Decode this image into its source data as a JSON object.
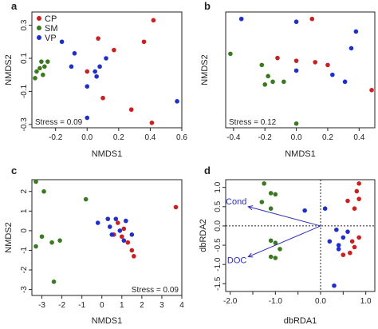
{
  "colors": {
    "CP": "#cc1f1f",
    "SM": "#3a7a1e",
    "VP": "#1f2fcc",
    "arrow": "#2d2db5"
  },
  "chart_data": [
    {
      "type": "scatter",
      "panel_label": "a",
      "xlabel": "NMDS1",
      "ylabel": "NMDS2",
      "xlim": [
        -0.35,
        0.6
      ],
      "ylim": [
        -0.32,
        0.38
      ],
      "xticks": [
        -0.2,
        0,
        0.2,
        0.4,
        0.6
      ],
      "xtick_labels": [
        "-0.2",
        "0.0",
        "0.2",
        "0.4",
        "0.6"
      ],
      "yticks": [
        -0.3,
        -0.1,
        0.1,
        0.3
      ],
      "ytick_labels": [
        "-0.3",
        "-0.1",
        "0.1",
        "0.3"
      ],
      "legend": {
        "position": "top-left",
        "entries": [
          "CP",
          "SM",
          "VP"
        ]
      },
      "annotation": "Stress = 0.09",
      "series": [
        {
          "name": "CP",
          "points": [
            [
              0.42,
              0.33
            ],
            [
              0.07,
              0.22
            ],
            [
              0.36,
              0.2
            ],
            [
              0.17,
              0.15
            ],
            [
              0.0,
              0.02
            ],
            [
              0.1,
              -0.14
            ],
            [
              0.28,
              -0.21
            ],
            [
              0.41,
              -0.29
            ]
          ]
        },
        {
          "name": "SM",
          "points": [
            [
              -0.29,
              0.08
            ],
            [
              -0.3,
              0.04
            ],
            [
              -0.32,
              0.02
            ],
            [
              -0.28,
              0.0
            ],
            [
              -0.27,
              0.05
            ],
            [
              -0.25,
              0.08
            ],
            [
              -0.33,
              -0.02
            ]
          ]
        },
        {
          "name": "VP",
          "points": [
            [
              -0.16,
              0.2
            ],
            [
              -0.08,
              0.13
            ],
            [
              0.12,
              0.1
            ],
            [
              -0.1,
              0.05
            ],
            [
              0.08,
              0.05
            ],
            [
              0.05,
              0.02
            ],
            [
              0.06,
              -0.01
            ],
            [
              0.0,
              -0.07
            ],
            [
              0.57,
              -0.16
            ],
            [
              0.0,
              -0.26
            ]
          ]
        }
      ]
    },
    {
      "type": "scatter",
      "panel_label": "b",
      "xlabel": "NMDS1",
      "ylabel": "NMDS2",
      "xlim": [
        -0.45,
        0.5
      ],
      "ylim": [
        -0.45,
        0.38
      ],
      "xticks": [
        -0.4,
        -0.2,
        0,
        0.2,
        0.4
      ],
      "xtick_labels": [
        "-0.4",
        "-0.2",
        "0.0",
        "0.2",
        "0.4"
      ],
      "yticks": [],
      "ytick_labels": [],
      "annotation": "Stress = 0.12",
      "series": [
        {
          "name": "CP",
          "points": [
            [
              0.1,
              0.33
            ],
            [
              0.48,
              -0.18
            ],
            [
              0.0,
              0.03
            ],
            [
              0.12,
              0.02
            ],
            [
              0.2,
              0.0
            ],
            [
              -0.12,
              0.05
            ]
          ]
        },
        {
          "name": "SM",
          "points": [
            [
              -0.42,
              0.08
            ],
            [
              -0.22,
              0.0
            ],
            [
              -0.18,
              -0.08
            ],
            [
              -0.15,
              -0.12
            ],
            [
              -0.2,
              -0.14
            ],
            [
              -0.08,
              -0.12
            ],
            [
              0.0,
              -0.42
            ]
          ]
        },
        {
          "name": "VP",
          "points": [
            [
              -0.35,
              0.33
            ],
            [
              0.0,
              0.31
            ],
            [
              0.38,
              0.24
            ],
            [
              0.35,
              0.12
            ],
            [
              0.0,
              -0.04
            ],
            [
              0.23,
              -0.07
            ],
            [
              0.31,
              -0.12
            ]
          ]
        }
      ]
    },
    {
      "type": "scatter",
      "panel_label": "c",
      "xlabel": "NMDS1",
      "ylabel": "NMDS2",
      "xlim": [
        -3.5,
        4.0
      ],
      "ylim": [
        -3.3,
        2.6
      ],
      "xticks": [
        -3,
        -2,
        -1,
        0,
        1,
        2,
        3,
        4
      ],
      "xtick_labels": [
        "-3",
        "-2",
        "-1",
        "0",
        "1",
        "2",
        "3",
        "4"
      ],
      "yticks": [
        -3,
        -2,
        -1,
        0,
        1,
        2
      ],
      "ytick_labels": [
        "-3",
        "-2",
        "-1",
        "0",
        "1",
        "2"
      ],
      "annotation": "Stress = 0.09",
      "series": [
        {
          "name": "CP",
          "points": [
            [
              3.7,
              1.2
            ],
            [
              0.8,
              0.4
            ],
            [
              1.1,
              0.1
            ],
            [
              0.6,
              -0.2
            ],
            [
              1.0,
              -0.3
            ],
            [
              1.3,
              -0.6
            ],
            [
              1.5,
              -1.0
            ],
            [
              1.6,
              -1.3
            ]
          ]
        },
        {
          "name": "SM",
          "points": [
            [
              -3.3,
              2.5
            ],
            [
              -2.9,
              2.0
            ],
            [
              -0.8,
              1.6
            ],
            [
              -3.0,
              -0.3
            ],
            [
              -2.5,
              -0.6
            ],
            [
              -3.3,
              -0.8
            ],
            [
              -2.1,
              -0.5
            ],
            [
              -2.4,
              -2.6
            ]
          ]
        },
        {
          "name": "VP",
          "points": [
            [
              -0.2,
              0.4
            ],
            [
              0.3,
              0.6
            ],
            [
              0.7,
              0.6
            ],
            [
              1.2,
              0.5
            ],
            [
              0.4,
              0.2
            ],
            [
              0.9,
              0.0
            ],
            [
              0.5,
              -0.2
            ],
            [
              1.5,
              -0.2
            ],
            [
              1.1,
              -0.5
            ]
          ]
        }
      ]
    },
    {
      "type": "scatter",
      "panel_label": "d",
      "xlabel": "dbRDA1",
      "ylabel": "dbRDA2",
      "xlim": [
        -2.1,
        1.2
      ],
      "ylim": [
        -1.7,
        1.2
      ],
      "xticks": [
        -2.0,
        -1.5,
        -1.0,
        -0.5,
        0.0,
        0.5,
        1.0
      ],
      "xtick_labels": [
        "-2.0",
        "",
        "-1.0",
        "",
        "0.0",
        "",
        "1.0"
      ],
      "yticks": [
        -1.5,
        -1.0,
        -0.5,
        0.0,
        0.5,
        1.0
      ],
      "ytick_labels": [
        "-1.5",
        "-1.0",
        "-0.5",
        "0.0",
        "0.5",
        "1.0"
      ],
      "reference_lines": {
        "x": 0,
        "y": 0
      },
      "vectors": [
        {
          "label": "Cond",
          "x": -1.6,
          "y": 0.5
        },
        {
          "label": "DOC",
          "x": -1.6,
          "y": -0.8
        }
      ],
      "series": [
        {
          "name": "CP",
          "points": [
            [
              0.85,
              1.1
            ],
            [
              0.8,
              0.9
            ],
            [
              0.85,
              0.7
            ],
            [
              0.6,
              0.65
            ],
            [
              0.75,
              0.45
            ],
            [
              0.85,
              -0.3
            ],
            [
              0.7,
              -0.4
            ],
            [
              0.75,
              -0.55
            ],
            [
              0.65,
              -0.7
            ],
            [
              0.5,
              -0.75
            ]
          ]
        },
        {
          "name": "SM",
          "points": [
            [
              -1.25,
              1.1
            ],
            [
              -1.1,
              0.85
            ],
            [
              -1.0,
              0.82
            ],
            [
              -1.3,
              0.62
            ],
            [
              -1.1,
              0.45
            ],
            [
              -1.1,
              -0.38
            ],
            [
              -1.0,
              -0.44
            ],
            [
              -0.9,
              -0.6
            ],
            [
              -1.1,
              -0.8
            ],
            [
              -1.0,
              -0.83
            ]
          ]
        },
        {
          "name": "VP",
          "points": [
            [
              -0.35,
              0.4
            ],
            [
              0.1,
              0.45
            ],
            [
              0.35,
              -0.1
            ],
            [
              0.6,
              -0.15
            ],
            [
              0.5,
              -0.3
            ],
            [
              0.2,
              -0.4
            ],
            [
              0.4,
              -0.5
            ],
            [
              0.4,
              -0.6
            ],
            [
              0.3,
              -1.55
            ]
          ]
        }
      ]
    }
  ]
}
